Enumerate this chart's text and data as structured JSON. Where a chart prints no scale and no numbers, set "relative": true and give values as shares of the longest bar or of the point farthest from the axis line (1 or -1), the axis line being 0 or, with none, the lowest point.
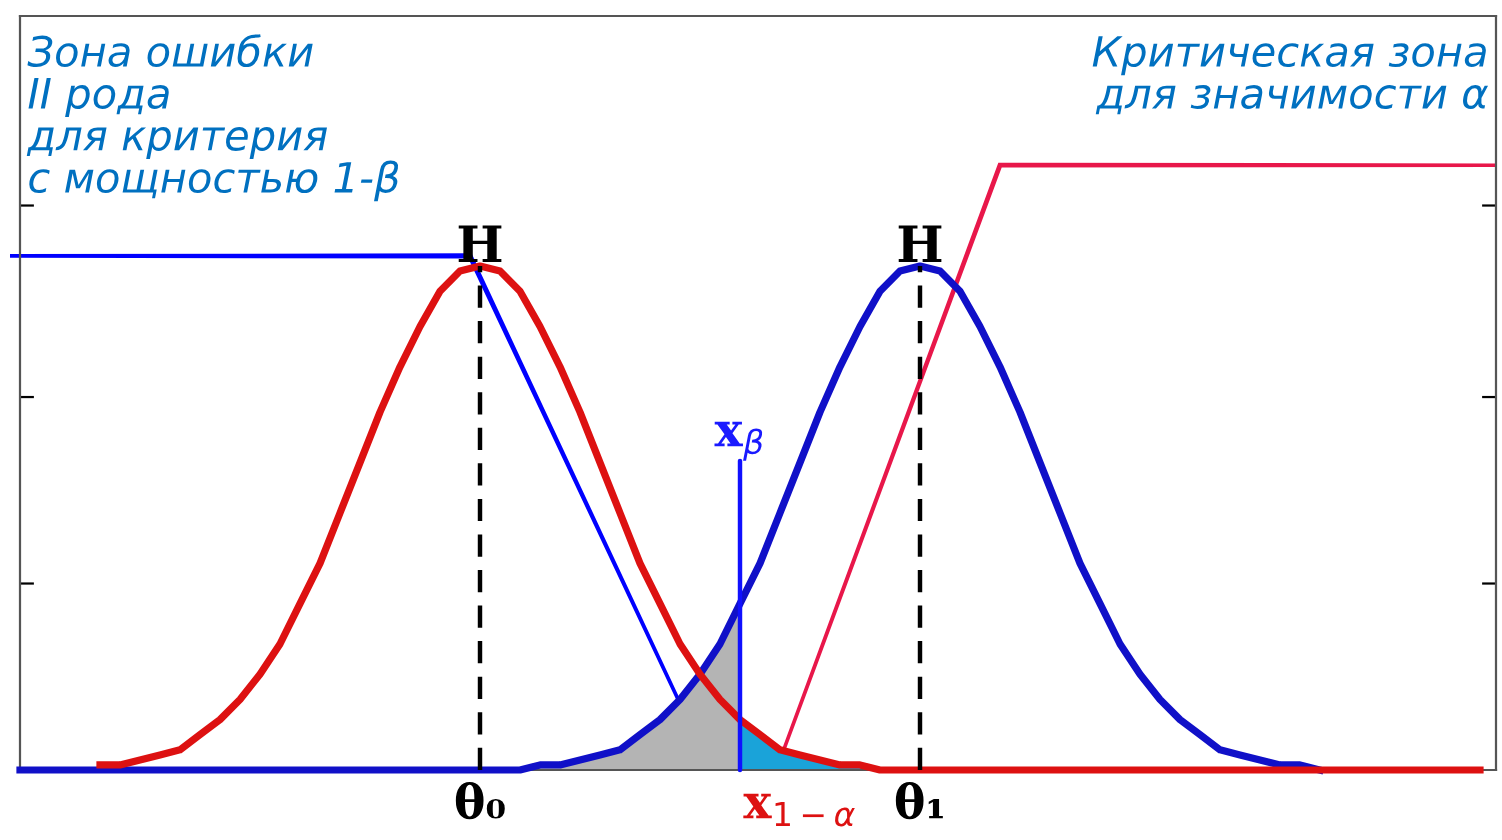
{
  "chart_data": {
    "type": "line",
    "relative": true,
    "grid": false,
    "legend": false,
    "tick_labels": "x",
    "marker": "none",
    "categories": [
      null,
      null,
      null,
      null,
      null,
      null,
      null,
      null,
      null,
      null,
      null,
      null,
      null,
      null,
      null,
      null,
      null,
      null,
      null,
      null,
      null,
      null,
      null,
      "θ₀",
      null,
      null,
      null,
      null,
      null,
      null,
      null,
      null,
      null,
      null,
      null,
      null,
      null,
      null,
      null,
      "x$_{1−α}$",
      null,
      null,
      null,
      null,
      null,
      "θ₁",
      null,
      null,
      null,
      null,
      null,
      null,
      null,
      null,
      null,
      null,
      null,
      null,
      null,
      null,
      null,
      null,
      null,
      null,
      null,
      null,
      null,
      null,
      null,
      null,
      null,
      null,
      null,
      null
    ],
    "series": [
      {
        "type": "area",
        "color": "#b4b4b4",
        "values": [
          0,
          0,
          0,
          0,
          0,
          0,
          0,
          0,
          0,
          0,
          0,
          0,
          0,
          0,
          0,
          0,
          0,
          0,
          0,
          0,
          0,
          0,
          0,
          0,
          0,
          0,
          0.01,
          0.01,
          0.02,
          0.03,
          0.04,
          0.07,
          0.1,
          0.14,
          0.19,
          0.25,
          0.33,
          null,
          null,
          null,
          null,
          null,
          null,
          null,
          null,
          null,
          null,
          null,
          null,
          null,
          null,
          null,
          null,
          null,
          null,
          null,
          null,
          null,
          null,
          null,
          null,
          null,
          null,
          null,
          null,
          null,
          null,
          null,
          null,
          null,
          null,
          null,
          null,
          null
        ]
      },
      {
        "type": "area",
        "color": "#1aa3d9",
        "values": [
          null,
          null,
          null,
          null,
          null,
          null,
          null,
          null,
          null,
          null,
          null,
          null,
          null,
          null,
          null,
          null,
          null,
          null,
          null,
          null,
          null,
          null,
          null,
          null,
          null,
          null,
          null,
          null,
          null,
          null,
          null,
          null,
          null,
          null,
          null,
          null,
          0.1,
          0.07,
          0.04,
          0.03,
          0.02,
          0.01,
          0.01,
          0,
          0,
          0,
          null,
          null,
          null,
          null,
          null,
          null,
          null,
          null,
          null,
          null,
          null,
          null,
          null,
          null,
          null,
          null,
          null,
          null,
          null,
          null,
          null,
          null,
          null,
          null,
          null,
          null,
          null,
          null
        ]
      },
      {
        "color": "#1010c8",
        "values": [
          0,
          0,
          0,
          0,
          0,
          0,
          0,
          0,
          0,
          0,
          0,
          0,
          0,
          0,
          0,
          0,
          0,
          0,
          0,
          0,
          0,
          0,
          0,
          0,
          0,
          0,
          0.01,
          0.01,
          0.02,
          0.03,
          0.04,
          0.07,
          0.1,
          0.14,
          0.19,
          0.25,
          0.33,
          0.41,
          0.51,
          0.61,
          0.71,
          0.8,
          0.88,
          0.95,
          0.99,
          1,
          0.99,
          0.95,
          0.88,
          0.8,
          0.71,
          0.61,
          0.51,
          0.41,
          0.33,
          0.25,
          0.19,
          0.14,
          0.1,
          0.07,
          0.04,
          0.03,
          0.02,
          0.01,
          0.01,
          0,
          null,
          null,
          null,
          null,
          null,
          null,
          null,
          null
        ]
      },
      {
        "color": "#dd1111",
        "values": [
          null,
          null,
          null,
          null,
          0.01,
          0.01,
          0.02,
          0.03,
          0.04,
          0.07,
          0.1,
          0.14,
          0.19,
          0.25,
          0.33,
          0.41,
          0.51,
          0.61,
          0.71,
          0.8,
          0.88,
          0.95,
          0.99,
          1,
          0.99,
          0.95,
          0.88,
          0.8,
          0.71,
          0.61,
          0.51,
          0.41,
          0.33,
          0.25,
          0.19,
          0.14,
          0.1,
          0.07,
          0.04,
          0.03,
          0.02,
          0.01,
          0.01,
          0,
          0,
          0,
          0,
          0,
          0,
          0,
          0,
          0,
          0,
          0,
          0,
          0,
          0,
          0,
          0,
          0,
          0,
          0,
          0,
          0,
          0,
          0,
          0,
          0,
          0,
          0,
          0,
          0,
          0,
          0
        ]
      }
    ],
    "ref_lines": [
      {
        "axis": "x",
        "value": "θ₀",
        "color": "#000000",
        "line_style": "dashed"
      },
      {
        "axis": "x",
        "value": "θ₁",
        "color": "#000000",
        "line_style": "dashed"
      }
    ],
    "annotations": [
      "Зона ошибки II рода для критерия с мощностью 1-β",
      "Критическая зона для значимости α",
      "H",
      "H",
      "x$_{β}$"
    ]
  }
}
